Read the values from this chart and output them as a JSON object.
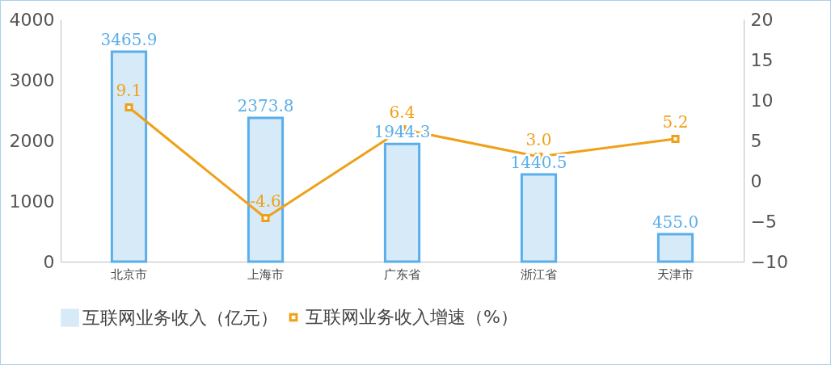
{
  "chart_data": {
    "type": "bar",
    "categories": [
      "北京市",
      "上海市",
      "广东省",
      "浙江省",
      "天津市"
    ],
    "series": [
      {
        "name": "互联网业务收入（亿元）",
        "color": "#d6eaf8",
        "values": [
          3465.9,
          2373.8,
          1944.3,
          1440.5,
          455.0
        ],
        "value_labels": [
          "3465.9",
          "2373.8",
          "1944.3",
          "1440.5",
          "455.0"
        ]
      },
      {
        "name": "互联网业务收入增速（%）",
        "type": "line",
        "axis": "y2",
        "color": "#f0a018",
        "values": [
          9.1,
          -4.6,
          6.4,
          3.0,
          5.2
        ],
        "value_labels": [
          "9.1",
          "-4.6",
          "6.4",
          "3.0",
          "5.2"
        ]
      }
    ],
    "ylim": [
      0,
      4000
    ],
    "yticks": [
      0,
      1000,
      2000,
      3000,
      4000
    ],
    "y2lim": [
      -10,
      20
    ],
    "y2ticks": [
      -10,
      -5,
      0,
      5,
      10,
      15,
      20
    ],
    "grid": false,
    "legend": "bottom",
    "marker": "square",
    "line_style": "solid"
  }
}
